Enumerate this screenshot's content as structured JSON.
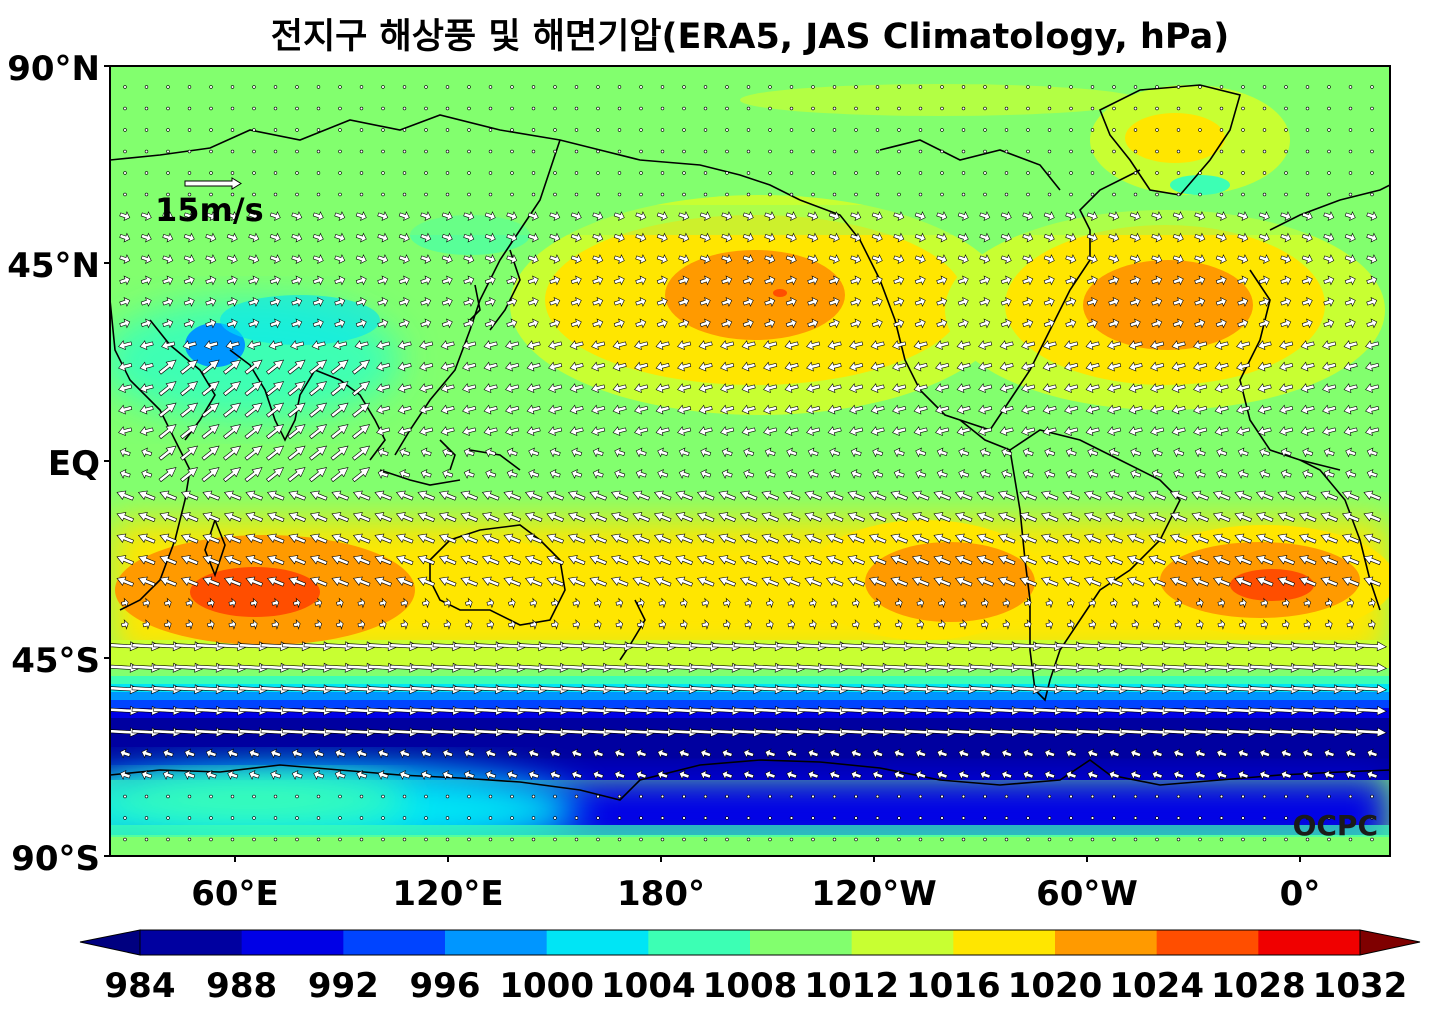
{
  "title": "전지구 해상풍 및 해면기압(ERA5, JAS Climatology, hPa)",
  "lat_labels": [
    "90°N",
    "45°N",
    "EQ",
    "45°S",
    "90°S"
  ],
  "lon_labels": [
    "60°E",
    "120°E",
    "180°",
    "120°W",
    "60°W",
    "0°"
  ],
  "reference_vector": "15m/s",
  "watermark": "OCPC",
  "colorbar": {
    "labels": [
      "984",
      "988",
      "992",
      "996",
      "1000",
      "1004",
      "1008",
      "1012",
      "1016",
      "1020",
      "1024",
      "1028",
      "1032"
    ],
    "under_color": "#000080",
    "over_color": "#7f0000",
    "colors": [
      "#0000a0",
      "#0000e6",
      "#0044ff",
      "#0096ff",
      "#00e5f5",
      "#3cffb4",
      "#82ff6e",
      "#c8ff32",
      "#ffe600",
      "#ff9a00",
      "#ff4e00",
      "#f00000"
    ]
  },
  "chart_data": {
    "type": "heatmap",
    "variable": "sea level pressure (hPa) with surface wind vectors",
    "x_range_deg_east": [
      25,
      385
    ],
    "y_range_deg": [
      -90,
      90
    ],
    "pressure_centers": [
      {
        "lon": 210,
        "lat": 38,
        "hPa": 1026
      },
      {
        "lon": 325,
        "lat": 38,
        "hPa": 1024
      },
      {
        "lon": 65,
        "lat": -30,
        "hPa": 1026
      },
      {
        "lon": 255,
        "lat": -30,
        "hPa": 1024
      },
      {
        "lon": 358,
        "lat": -28,
        "hPa": 1026
      },
      {
        "lon": 300,
        "lat": 75,
        "hPa": 1016
      },
      {
        "lon": 75,
        "lat": 25,
        "hPa": 1000
      },
      {
        "lon": 180,
        "lat": -66,
        "hPa": 984
      }
    ]
  }
}
